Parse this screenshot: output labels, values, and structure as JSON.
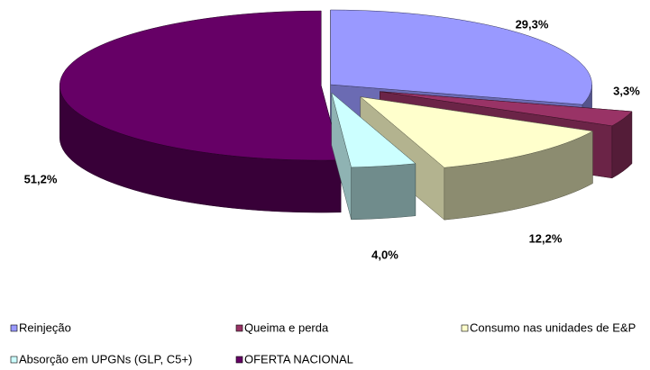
{
  "chart_data": {
    "type": "pie3d",
    "categories": [
      "Reinjeção",
      "Queima e perda",
      "Consumo nas unidades de E&P",
      "Absorção em UPGNs (GLP, C5+)",
      "OFERTA NACIONAL"
    ],
    "values": [
      29.3,
      3.3,
      12.2,
      4.0,
      51.2
    ],
    "value_labels": [
      "29,3%",
      "3,3%",
      "12,2%",
      "4,0%",
      "51,2%"
    ],
    "colors": [
      "#9999ff",
      "#993366",
      "#ffffcc",
      "#ccffff",
      "#660066"
    ],
    "legend": "bottom"
  }
}
